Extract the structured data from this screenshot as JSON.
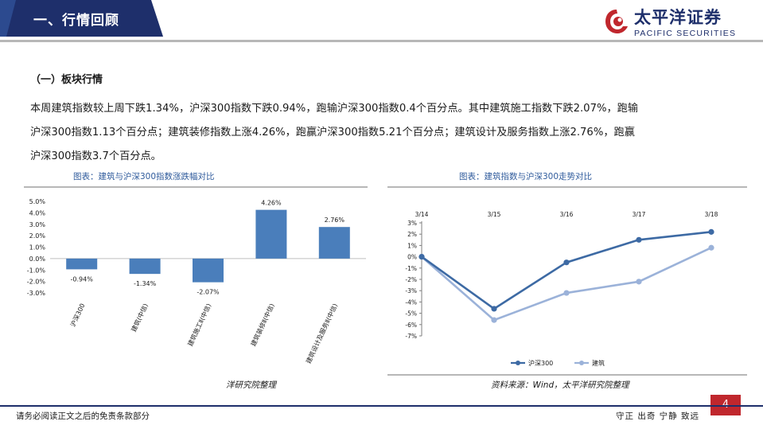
{
  "header": {
    "title": "一、行情回顾"
  },
  "logo": {
    "cn": "太平洋证券",
    "en": "PACIFIC SECURITIES"
  },
  "section": {
    "heading": "（一）板块行情"
  },
  "paragraph": {
    "line1": "本周建筑指数较上周下跌1.34%，沪深300指数下跌0.94%，跑输沪深300指数0.4个百分点。其中建筑施工指数下跌2.07%，跑输",
    "line2": "沪深300指数1.13个百分点；建筑装修指数上涨4.26%，跑赢沪深300指数5.21个百分点；建筑设计及服务指数上涨2.76%，跑赢",
    "line3": "沪深300指数3.7个百分点。"
  },
  "left_chart": {
    "title": "图表：建筑与沪深300指数涨跌幅对比",
    "note": "洋研究院整理"
  },
  "right_chart": {
    "title": "图表：建筑指数与沪深300走势对比",
    "note": "资料来源：Wind，太平洋研究院整理"
  },
  "footer": {
    "left": "请务必阅读正文之后的免责条款部分",
    "right": "守正  出奇  宁静  致远",
    "page": "4"
  },
  "colors": {
    "brand": "#1e2f6b",
    "bar": "#4a7ebb",
    "line_dark": "#3d6aa4",
    "line_light": "#9bb2d9",
    "accent_red": "#c0272d"
  },
  "chart_data": [
    {
      "type": "bar",
      "categories": [
        "沪深300",
        "建筑(中信)",
        "建筑施工Ⅱ(中信)",
        "建筑装修Ⅱ(中信)",
        "建筑设计及服务Ⅱ(中信)"
      ],
      "values": [
        -0.94,
        -1.34,
        -2.07,
        4.26,
        2.76
      ],
      "value_labels": [
        "-0.94%",
        "-1.34%",
        "-2.07%",
        "4.26%",
        "2.76%"
      ],
      "ylim": [
        -3.0,
        5.0
      ],
      "yticks": [
        "5.0%",
        "4.0%",
        "3.0%",
        "2.0%",
        "1.0%",
        "0.0%",
        "-1.0%",
        "-2.0%",
        "-3.0%"
      ],
      "ytick_values": [
        5,
        4,
        3,
        2,
        1,
        0,
        -1,
        -2,
        -3
      ]
    },
    {
      "type": "line",
      "x": [
        "3/14",
        "3/15",
        "3/16",
        "3/17",
        "3/18"
      ],
      "series": [
        {
          "name": "沪深300",
          "values": [
            0,
            -4.6,
            -0.5,
            1.5,
            2.2
          ]
        },
        {
          "name": "建筑",
          "values": [
            0,
            -5.6,
            -3.2,
            -2.2,
            0.8
          ]
        }
      ],
      "ylim": [
        -7,
        3
      ],
      "yticks": [
        "3%",
        "2%",
        "1%",
        "0%",
        "-1%",
        "-2%",
        "-3%",
        "-4%",
        "-5%",
        "-6%",
        "-7%"
      ],
      "ytick_values": [
        3,
        2,
        1,
        0,
        -1,
        -2,
        -3,
        -4,
        -5,
        -6,
        -7
      ]
    }
  ]
}
